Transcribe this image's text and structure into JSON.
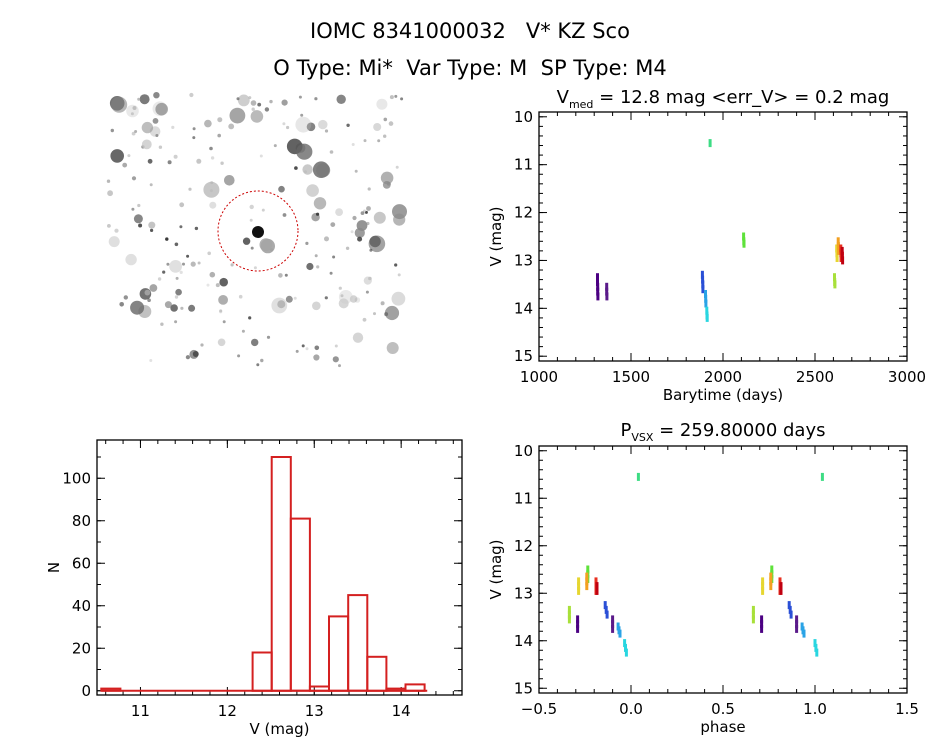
{
  "header": {
    "title": "IOMC 8341000032   V* KZ Sco",
    "subtitle": "O Type: Mi*  Var Type: M  SP Type: M4"
  },
  "image_panel": {
    "description_label": "finder-chart",
    "top_left_text": "",
    "bottom_left_text": "",
    "bottom_center_text": ""
  },
  "colors": {
    "hist": "#d42020",
    "circle": "#cc0000",
    "palette": [
      "#4b0082",
      "#5a1a8a",
      "#2a4fd6",
      "#2aa3e6",
      "#29d6e0",
      "#3ddc84",
      "#5ee23a",
      "#a8e03a",
      "#e6d630",
      "#f3a020",
      "#e83020",
      "#c00010"
    ]
  },
  "chart_data": [
    {
      "id": "lightcurve",
      "type": "scatter",
      "title_main": "V",
      "title_sub": "med",
      "title_rest": " = 12.8 mag <err_V> = 0.2 mag",
      "xlabel": "Barytime (days)",
      "ylabel": "V (mag)",
      "xlim": [
        1000,
        3000
      ],
      "ylim": [
        15.1,
        9.9
      ],
      "xticks": [
        "1000",
        "1500",
        "2000",
        "2500",
        "3000"
      ],
      "xtick_values": [
        1000,
        1500,
        2000,
        2500,
        3000
      ],
      "yticks": [
        "10",
        "11",
        "12",
        "13",
        "14",
        "15"
      ],
      "ytick_values": [
        10,
        11,
        12,
        13,
        14,
        15
      ],
      "series": [
        {
          "color_idx": 0,
          "x": [
            1318,
            1318,
            1319,
            1319,
            1320
          ],
          "y": [
            13.35,
            13.45,
            13.55,
            13.65,
            13.75
          ]
        },
        {
          "color_idx": 1,
          "x": [
            1368,
            1368,
            1369
          ],
          "y": [
            13.55,
            13.65,
            13.75
          ]
        },
        {
          "color_idx": 2,
          "x": [
            1888,
            1889,
            1890,
            1891
          ],
          "y": [
            13.3,
            13.4,
            13.5,
            13.6
          ]
        },
        {
          "color_idx": 3,
          "x": [
            1905,
            1906,
            1907
          ],
          "y": [
            13.7,
            13.8,
            13.9
          ]
        },
        {
          "color_idx": 4,
          "x": [
            1912,
            1913,
            1914
          ],
          "y": [
            14.05,
            14.15,
            14.2
          ]
        },
        {
          "color_idx": 5,
          "x": [
            1930
          ],
          "y": [
            10.55
          ]
        },
        {
          "color_idx": 6,
          "x": [
            2112,
            2113,
            2114
          ],
          "y": [
            12.5,
            12.6,
            12.65
          ]
        },
        {
          "color_idx": 7,
          "x": [
            2606,
            2607,
            2608
          ],
          "y": [
            13.35,
            13.45,
            13.5
          ]
        },
        {
          "color_idx": 8,
          "x": [
            2618,
            2619,
            2620
          ],
          "y": [
            12.75,
            12.85,
            12.95
          ]
        },
        {
          "color_idx": 9,
          "x": [
            2626,
            2627,
            2628
          ],
          "y": [
            12.6,
            12.7,
            12.8
          ]
        },
        {
          "color_idx": 10,
          "x": [
            2640,
            2641,
            2642
          ],
          "y": [
            12.75,
            12.85,
            12.95
          ]
        },
        {
          "color_idx": 11,
          "x": [
            2648,
            2649,
            2650
          ],
          "y": [
            12.8,
            12.9,
            13.0
          ]
        }
      ]
    },
    {
      "id": "phased",
      "type": "scatter",
      "title_main": "P",
      "title_sub": "VSX",
      "title_rest": " = 259.80000 days",
      "xlabel": "phase",
      "ylabel": "V (mag)",
      "xlim": [
        -0.5,
        1.5
      ],
      "ylim": [
        15.1,
        9.9
      ],
      "xticks": [
        "−0.5",
        "0.0",
        "0.5",
        "1.0",
        "1.5"
      ],
      "xtick_values": [
        -0.5,
        0.0,
        0.5,
        1.0,
        1.5
      ],
      "yticks": [
        "10",
        "11",
        "12",
        "13",
        "14",
        "15"
      ],
      "ytick_values": [
        10,
        11,
        12,
        13,
        14,
        15
      ],
      "series": [
        {
          "color_idx": 0,
          "x": [
            -0.29,
            -0.29,
            -0.29
          ],
          "y": [
            13.55,
            13.65,
            13.75
          ]
        },
        {
          "color_idx": 1,
          "x": [
            -0.1,
            -0.1,
            -0.1
          ],
          "y": [
            13.55,
            13.65,
            13.75
          ]
        },
        {
          "color_idx": 2,
          "x": [
            -0.14,
            -0.135,
            -0.13
          ],
          "y": [
            13.25,
            13.35,
            13.45
          ]
        },
        {
          "color_idx": 3,
          "x": [
            -0.07,
            -0.065,
            -0.06
          ],
          "y": [
            13.7,
            13.78,
            13.85
          ]
        },
        {
          "color_idx": 4,
          "x": [
            -0.035,
            -0.03,
            -0.025
          ],
          "y": [
            14.05,
            14.15,
            14.25
          ]
        },
        {
          "color_idx": 5,
          "x": [
            0.04
          ],
          "y": [
            10.55
          ]
        },
        {
          "color_idx": 6,
          "x": [
            -0.235,
            -0.235,
            -0.235
          ],
          "y": [
            12.5,
            12.6,
            12.7
          ]
        },
        {
          "color_idx": 7,
          "x": [
            -0.335,
            -0.335,
            -0.335
          ],
          "y": [
            13.35,
            13.45,
            13.55
          ]
        },
        {
          "color_idx": 8,
          "x": [
            -0.285,
            -0.285,
            -0.285
          ],
          "y": [
            12.75,
            12.85,
            12.95
          ]
        },
        {
          "color_idx": 9,
          "x": [
            -0.24,
            -0.24,
            -0.24
          ],
          "y": [
            12.65,
            12.75,
            12.85
          ]
        },
        {
          "color_idx": 10,
          "x": [
            -0.19,
            -0.19,
            -0.19
          ],
          "y": [
            12.75,
            12.85,
            12.95
          ]
        },
        {
          "color_idx": 11,
          "x": [
            -0.185,
            -0.185
          ],
          "y": [
            12.85,
            12.95
          ]
        },
        {
          "color_idx": 0,
          "x": [
            0.71,
            0.71,
            0.71
          ],
          "y": [
            13.55,
            13.65,
            13.75
          ]
        },
        {
          "color_idx": 1,
          "x": [
            0.9,
            0.9,
            0.9
          ],
          "y": [
            13.55,
            13.65,
            13.75
          ]
        },
        {
          "color_idx": 2,
          "x": [
            0.86,
            0.865,
            0.87
          ],
          "y": [
            13.25,
            13.35,
            13.45
          ]
        },
        {
          "color_idx": 3,
          "x": [
            0.93,
            0.935,
            0.94
          ],
          "y": [
            13.7,
            13.78,
            13.85
          ]
        },
        {
          "color_idx": 4,
          "x": [
            1.0,
            1.005,
            1.01
          ],
          "y": [
            14.05,
            14.15,
            14.25
          ]
        },
        {
          "color_idx": 5,
          "x": [
            1.04
          ],
          "y": [
            10.55
          ]
        },
        {
          "color_idx": 6,
          "x": [
            0.765,
            0.765,
            0.765
          ],
          "y": [
            12.5,
            12.6,
            12.7
          ]
        },
        {
          "color_idx": 7,
          "x": [
            0.665,
            0.665,
            0.665
          ],
          "y": [
            13.35,
            13.45,
            13.55
          ]
        },
        {
          "color_idx": 8,
          "x": [
            0.715,
            0.715,
            0.715
          ],
          "y": [
            12.75,
            12.85,
            12.95
          ]
        },
        {
          "color_idx": 9,
          "x": [
            0.76,
            0.76,
            0.76
          ],
          "y": [
            12.65,
            12.75,
            12.85
          ]
        },
        {
          "color_idx": 10,
          "x": [
            0.81,
            0.81,
            0.81
          ],
          "y": [
            12.75,
            12.85,
            12.95
          ]
        },
        {
          "color_idx": 11,
          "x": [
            0.815,
            0.815
          ],
          "y": [
            12.85,
            12.95
          ]
        }
      ]
    },
    {
      "id": "histogram",
      "type": "bar",
      "xlabel": "V (mag)",
      "ylabel": "N",
      "xlim": [
        10.5,
        14.7
      ],
      "ylim": [
        -2,
        118
      ],
      "xticks": [
        "11",
        "12",
        "13",
        "14"
      ],
      "xtick_values": [
        11,
        12,
        13,
        14
      ],
      "yticks": [
        "0",
        "20",
        "40",
        "60",
        "80",
        "100"
      ],
      "ytick_values": [
        0,
        20,
        40,
        60,
        80,
        100
      ],
      "bin_width": 0.22,
      "bins": [
        {
          "left": 10.55,
          "count": 1
        },
        {
          "left": 12.29,
          "count": 18
        },
        {
          "left": 12.51,
          "count": 110
        },
        {
          "left": 12.73,
          "count": 81
        },
        {
          "left": 12.95,
          "count": 2
        },
        {
          "left": 13.17,
          "count": 35
        },
        {
          "left": 13.39,
          "count": 45
        },
        {
          "left": 13.61,
          "count": 16
        },
        {
          "left": 13.83,
          "count": 1
        },
        {
          "left": 14.05,
          "count": 3
        }
      ]
    }
  ]
}
